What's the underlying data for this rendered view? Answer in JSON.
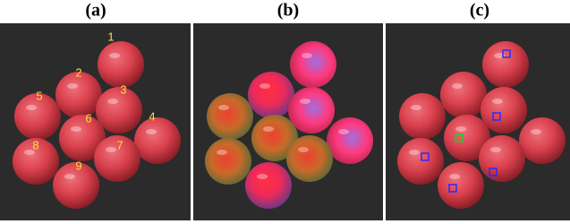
{
  "figure": {
    "panels": [
      {
        "label": "(a)",
        "tomato_numbers": [
          "1",
          "2",
          "3",
          "4",
          "5",
          "6",
          "7",
          "8",
          "9"
        ]
      },
      {
        "label": "(b)"
      },
      {
        "label": "(c)"
      }
    ]
  }
}
